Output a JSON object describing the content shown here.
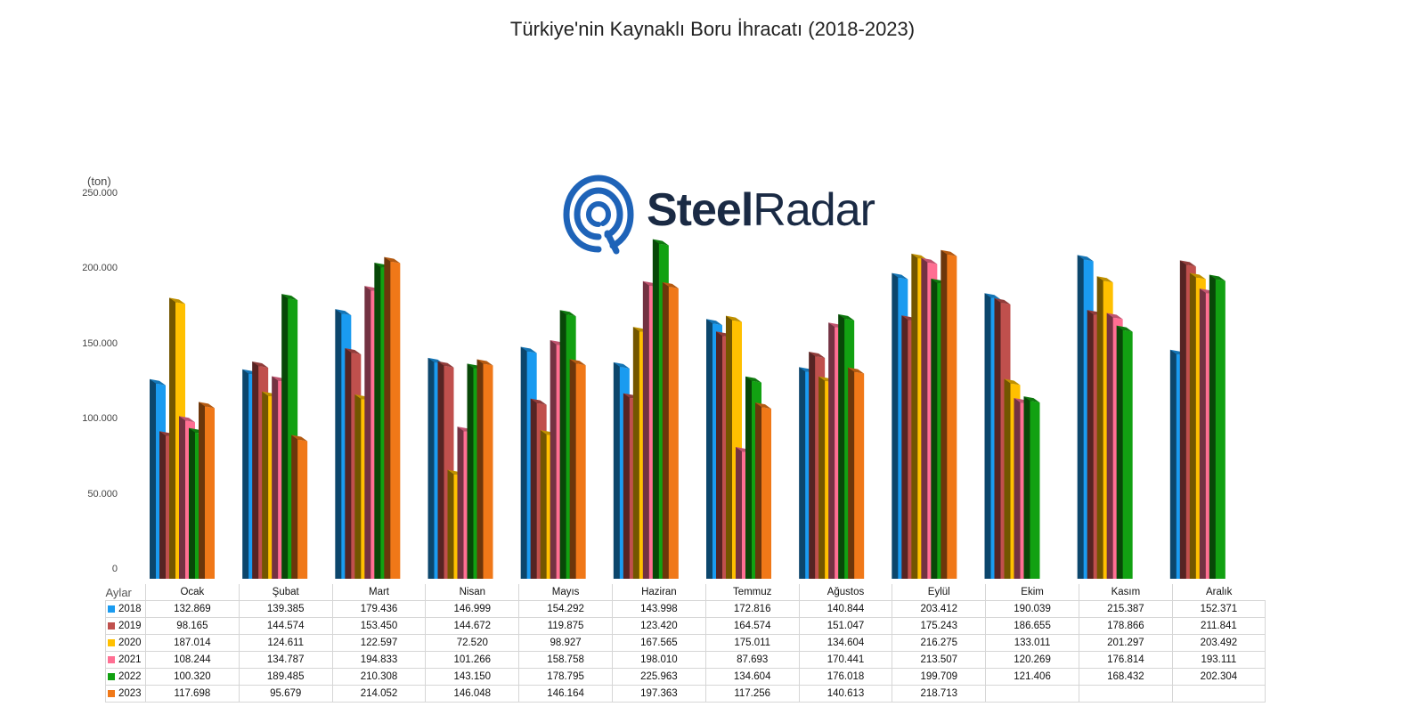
{
  "chart_data": {
    "type": "bar",
    "title": "Türkiye'nin Kaynaklı Boru İhracatı (2018-2023)",
    "unit_label": "(ton)",
    "ylim": [
      0,
      250000
    ],
    "yticks": [
      "0",
      "50.000",
      "100.000",
      "150.000",
      "200.000",
      "250.000"
    ],
    "table_corner_label": "Aylar",
    "categories": [
      "Ocak",
      "Şubat",
      "Mart",
      "Nisan",
      "Mayıs",
      "Haziran",
      "Temmuz",
      "Ağustos",
      "Eylül",
      "Ekim",
      "Kasım",
      "Aralık"
    ],
    "series": [
      {
        "name": "2018",
        "color": "#1a9bf0",
        "values": [
          132869,
          139385,
          179436,
          146999,
          154292,
          143998,
          172816,
          140844,
          203412,
          190039,
          215387,
          152371
        ],
        "labels": [
          "132.869",
          "139.385",
          "179.436",
          "146.999",
          "154.292",
          "143.998",
          "172.816",
          "140.844",
          "203.412",
          "190.039",
          "215.387",
          "152.371"
        ]
      },
      {
        "name": "2019",
        "color": "#c0504d",
        "values": [
          98165,
          144574,
          153450,
          144672,
          119875,
          123420,
          164574,
          151047,
          175243,
          186655,
          178866,
          211841
        ],
        "labels": [
          "98.165",
          "144.574",
          "153.450",
          "144.672",
          "119.875",
          "123.420",
          "164.574",
          "151.047",
          "175.243",
          "186.655",
          "178.866",
          "211.841"
        ]
      },
      {
        "name": "2020",
        "color": "#ffc000",
        "values": [
          187014,
          124611,
          122597,
          72520,
          98927,
          167565,
          175011,
          134604,
          216275,
          133011,
          201297,
          203492
        ],
        "labels": [
          "187.014",
          "124.611",
          "122.597",
          "72.520",
          "98.927",
          "167.565",
          "175.011",
          "134.604",
          "216.275",
          "133.011",
          "201.297",
          "203.492"
        ]
      },
      {
        "name": "2021",
        "color": "#ff6f93",
        "values": [
          108244,
          134787,
          194833,
          101266,
          158758,
          198010,
          87693,
          170441,
          213507,
          120269,
          176814,
          193111
        ],
        "labels": [
          "108.244",
          "134.787",
          "194.833",
          "101.266",
          "158.758",
          "198.010",
          "87.693",
          "170.441",
          "213.507",
          "120.269",
          "176.814",
          "193.111"
        ]
      },
      {
        "name": "2022",
        "color": "#12a112",
        "values": [
          100320,
          189485,
          210308,
          143150,
          178795,
          225963,
          134604,
          176018,
          199709,
          121406,
          168432,
          202304
        ],
        "labels": [
          "100.320",
          "189.485",
          "210.308",
          "143.150",
          "178.795",
          "225.963",
          "134.604",
          "176.018",
          "199.709",
          "121.406",
          "168.432",
          "202.304"
        ]
      },
      {
        "name": "2023",
        "color": "#f07818",
        "values": [
          117698,
          95679,
          214052,
          146048,
          146164,
          197363,
          117256,
          140613,
          218713,
          null,
          null,
          null
        ],
        "labels": [
          "117.698",
          "95.679",
          "214.052",
          "146.048",
          "146.164",
          "197.363",
          "117.256",
          "140.613",
          "218.713",
          "",
          "",
          ""
        ]
      }
    ]
  },
  "watermark": {
    "text_steel": "Steel",
    "text_radar": "Radar",
    "color": "#1e63b8"
  }
}
